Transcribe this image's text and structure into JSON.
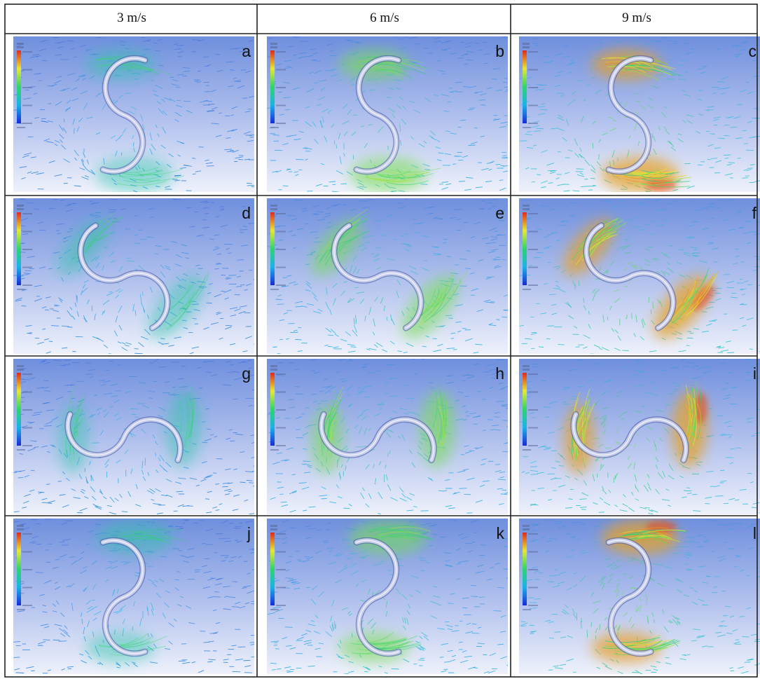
{
  "figure": {
    "columns": [
      {
        "label": "3 m/s",
        "speed": 3
      },
      {
        "label": "6 m/s",
        "speed": 6
      },
      {
        "label": "9 m/s",
        "speed": 9
      }
    ],
    "rows": [
      {
        "orientation": "rotor-vertical"
      },
      {
        "orientation": "rotor-inclined"
      },
      {
        "orientation": "rotor-horizontal"
      },
      {
        "orientation": "rotor-vertical-mirrored"
      }
    ],
    "panels": [
      {
        "label": "a",
        "intensity": 0.18
      },
      {
        "label": "b",
        "intensity": 0.5
      },
      {
        "label": "c",
        "intensity": 0.85
      },
      {
        "label": "d",
        "intensity": 0.18
      },
      {
        "label": "e",
        "intensity": 0.5
      },
      {
        "label": "f",
        "intensity": 0.85
      },
      {
        "label": "g",
        "intensity": 0.18
      },
      {
        "label": "h",
        "intensity": 0.5
      },
      {
        "label": "i",
        "intensity": 0.85
      },
      {
        "label": "j",
        "intensity": 0.18
      },
      {
        "label": "k",
        "intensity": 0.5
      },
      {
        "label": "l",
        "intensity": 0.85
      }
    ],
    "colors": {
      "background_top": "#6f8fdd",
      "background_bottom": "#eef1fb",
      "colormap": [
        "#1a2bd6",
        "#18b4e8",
        "#2ed66a",
        "#e8e832",
        "#e02a1a"
      ],
      "grid_line": "#222222",
      "rotor": "#c9cfea"
    }
  }
}
